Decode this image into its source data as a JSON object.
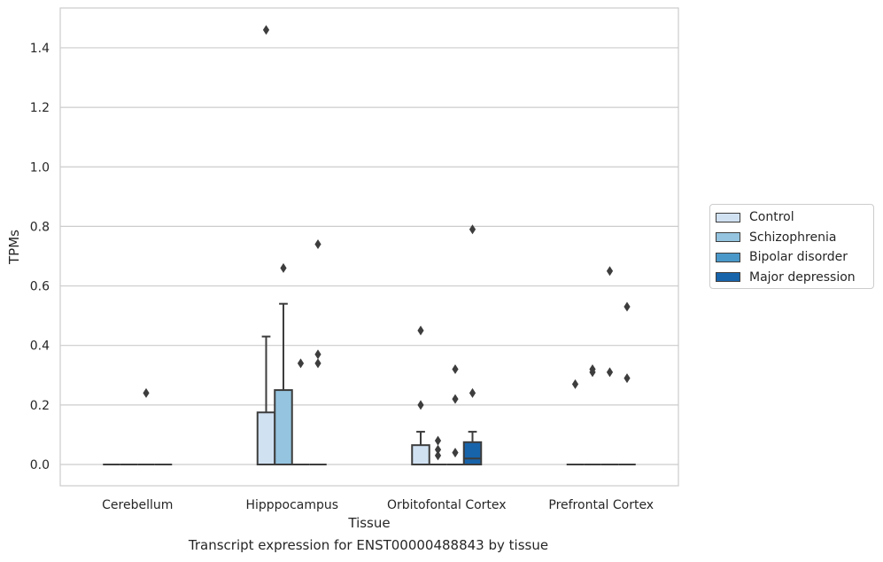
{
  "chart_data": {
    "type": "box",
    "title": "",
    "caption": "Transcript expression for ENST00000488843 by tissue",
    "xlabel": "Tissue",
    "ylabel": "TPMs",
    "ylim": [
      -0.07,
      1.53
    ],
    "yticks": [
      "0.0",
      "0.2",
      "0.4",
      "0.6",
      "0.8",
      "1.0",
      "1.2",
      "1.4"
    ],
    "grid": "horizontal",
    "legend_position": "right",
    "categories": [
      "Cerebellum",
      "Hipppocampus",
      "Orbitofontal Cortex",
      "Prefrontal Cortex"
    ],
    "series": [
      {
        "name": "Control",
        "color": "#d0e1f2",
        "boxes": [
          {
            "q1": 0,
            "median": 0,
            "q3": 0,
            "whisker_low": 0,
            "whisker_high": 0,
            "outliers": []
          },
          {
            "q1": 0,
            "median": 0,
            "q3": 0.175,
            "whisker_low": 0,
            "whisker_high": 0.43,
            "outliers": [
              1.46
            ]
          },
          {
            "q1": 0,
            "median": 0,
            "q3": 0.065,
            "whisker_low": 0,
            "whisker_high": 0.11,
            "outliers": [
              0.45,
              0.2
            ]
          },
          {
            "q1": 0,
            "median": 0,
            "q3": 0,
            "whisker_low": 0,
            "whisker_high": 0,
            "outliers": [
              0.27
            ]
          }
        ]
      },
      {
        "name": "Schizophrenia",
        "color": "#94c4df",
        "boxes": [
          {
            "q1": 0,
            "median": 0,
            "q3": 0,
            "whisker_low": 0,
            "whisker_high": 0,
            "outliers": []
          },
          {
            "q1": 0,
            "median": 0,
            "q3": 0.25,
            "whisker_low": 0,
            "whisker_high": 0.54,
            "outliers": [
              0.66
            ]
          },
          {
            "q1": 0,
            "median": 0,
            "q3": 0,
            "whisker_low": 0,
            "whisker_high": 0,
            "outliers": [
              0.08,
              0.05,
              0.03
            ]
          },
          {
            "q1": 0,
            "median": 0,
            "q3": 0,
            "whisker_low": 0,
            "whisker_high": 0,
            "outliers": [
              0.32,
              0.31
            ]
          }
        ]
      },
      {
        "name": "Bipolar disorder",
        "color": "#4a98c9",
        "boxes": [
          {
            "q1": 0,
            "median": 0,
            "q3": 0,
            "whisker_low": 0,
            "whisker_high": 0,
            "outliers": [
              0.24
            ]
          },
          {
            "q1": 0,
            "median": 0,
            "q3": 0,
            "whisker_low": 0,
            "whisker_high": 0,
            "outliers": [
              0.34
            ]
          },
          {
            "q1": 0,
            "median": 0,
            "q3": 0,
            "whisker_low": 0,
            "whisker_high": 0,
            "outliers": [
              0.32,
              0.22,
              0.04
            ]
          },
          {
            "q1": 0,
            "median": 0,
            "q3": 0,
            "whisker_low": 0,
            "whisker_high": 0,
            "outliers": [
              0.65,
              0.31
            ]
          }
        ]
      },
      {
        "name": "Major depression",
        "color": "#1764ab",
        "boxes": [
          {
            "q1": 0,
            "median": 0,
            "q3": 0,
            "whisker_low": 0,
            "whisker_high": 0,
            "outliers": []
          },
          {
            "q1": 0,
            "median": 0,
            "q3": 0,
            "whisker_low": 0,
            "whisker_high": 0,
            "outliers": [
              0.74,
              0.37,
              0.34
            ]
          },
          {
            "q1": 0,
            "median": 0.02,
            "q3": 0.075,
            "whisker_low": 0,
            "whisker_high": 0.11,
            "outliers": [
              0.79,
              0.24
            ]
          },
          {
            "q1": 0,
            "median": 0,
            "q3": 0,
            "whisker_low": 0,
            "whisker_high": 0,
            "outliers": [
              0.53,
              0.29
            ]
          }
        ]
      }
    ]
  }
}
